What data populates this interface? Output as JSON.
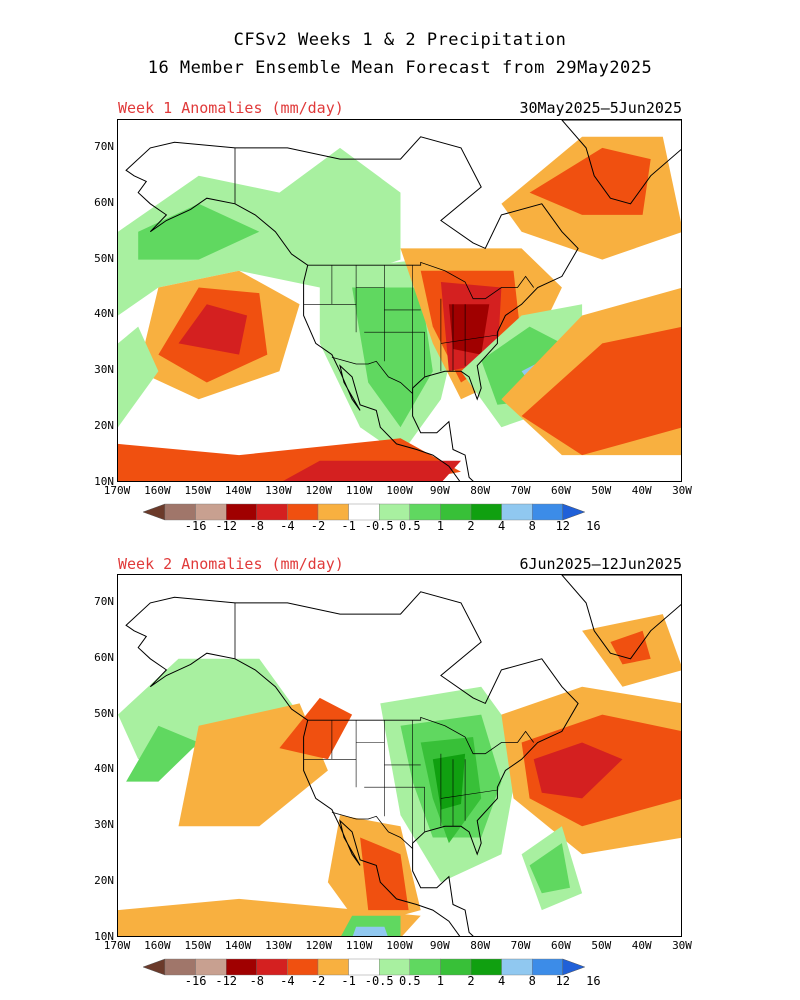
{
  "title": {
    "line1": "CFSv2 Weeks 1 & 2 Precipitation",
    "line2": "16 Member Ensemble Mean Forecast from 29May2025"
  },
  "axes": {
    "lat_labels": [
      "70N",
      "60N",
      "50N",
      "40N",
      "30N",
      "20N",
      "10N"
    ],
    "lat_values": [
      70,
      60,
      50,
      40,
      30,
      20,
      10
    ],
    "lon_labels": [
      "170W",
      "160W",
      "150W",
      "140W",
      "130W",
      "120W",
      "110W",
      "100W",
      "90W",
      "80W",
      "70W",
      "60W",
      "50W",
      "40W",
      "30W"
    ],
    "lon_values": [
      -170,
      -160,
      -150,
      -140,
      -130,
      -120,
      -110,
      -100,
      -90,
      -80,
      -70,
      -60,
      -50,
      -40,
      -30
    ],
    "lat_range": [
      10,
      75
    ],
    "lon_range": [
      -170,
      -30
    ]
  },
  "colorbar": {
    "labels": [
      "-16",
      "-12",
      "-8",
      "-4",
      "-2",
      "-1",
      "-0.5",
      "0.5",
      "1",
      "2",
      "4",
      "8",
      "12",
      "16"
    ],
    "colors": [
      "#6b3a2a",
      "#a0766a",
      "#c8a090",
      "#a00000",
      "#d42020",
      "#f05010",
      "#f8b040",
      "#ffffff",
      "#a8f0a0",
      "#60d860",
      "#38c038",
      "#10a010",
      "#90c8f0",
      "#3c8ce8",
      "#2060d8"
    ]
  },
  "panels": [
    {
      "label": "Week 1 Anomalies (mm/day)",
      "dates": "30May2025–5Jun2025"
    },
    {
      "label": "Week 2 Anomalies (mm/day)",
      "dates": "6Jun2025–12Jun2025"
    }
  ]
}
